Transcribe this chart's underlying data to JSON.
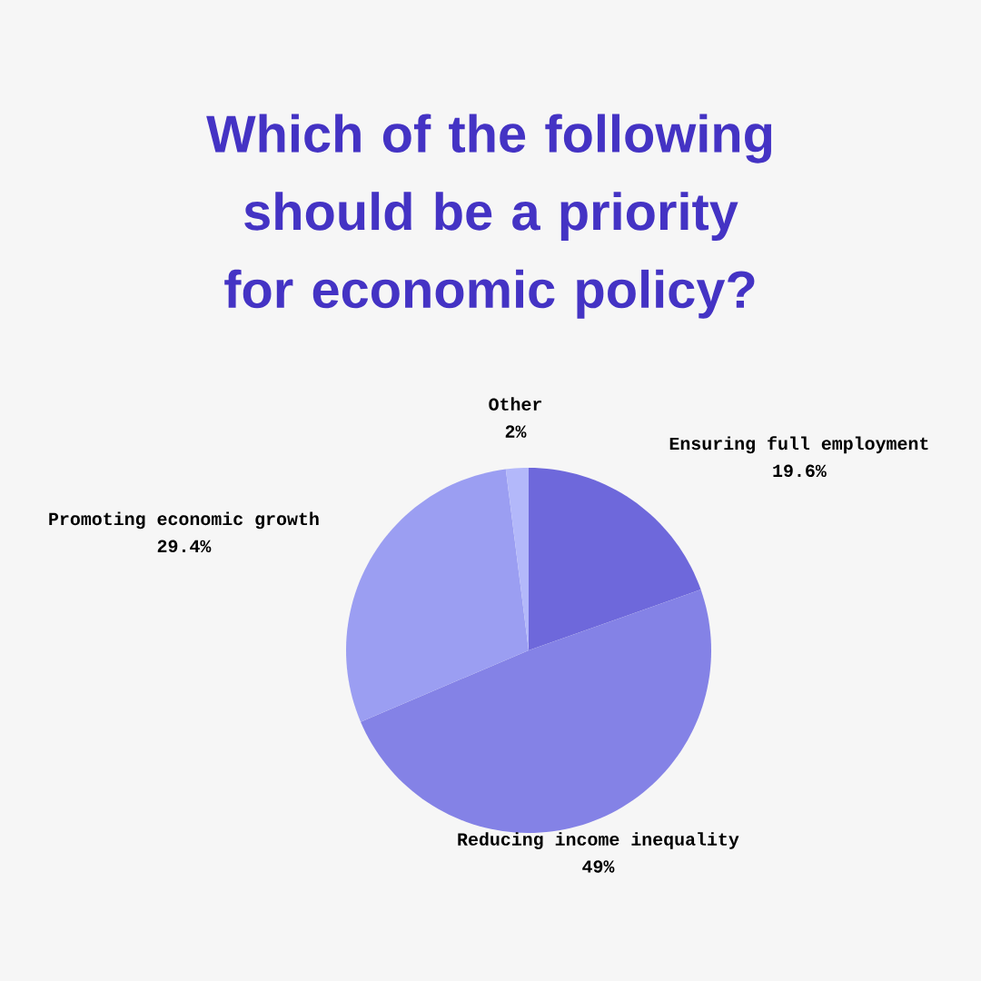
{
  "chart_data": {
    "type": "pie",
    "title": "Which of the following should be a priority for economic policy?",
    "categories": [
      "Ensuring full employment",
      "Reducing income inequality",
      "Promoting economic growth",
      "Other"
    ],
    "values": [
      19.6,
      49,
      29.4,
      2
    ],
    "value_labels": [
      "19.6%",
      "49%",
      "29.4%",
      "2%"
    ],
    "colors": [
      "#6e68db",
      "#8482e6",
      "#9b9ef2",
      "#b3b8fa"
    ]
  }
}
